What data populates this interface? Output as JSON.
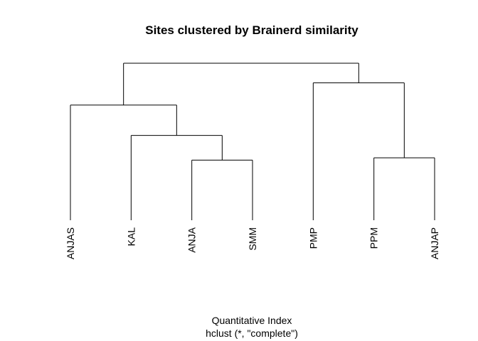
{
  "chart_data": {
    "type": "dendrogram",
    "title": "Sites clustered by Brainerd similarity",
    "xlabel": "Quantitative Index",
    "sub": "hclust (*, \"complete\")",
    "labels": [
      "ANJAS",
      "KAL",
      "ANJA",
      "SMM",
      "PMP",
      "PPM",
      "ANJAP"
    ],
    "merges": [
      {
        "a": "leaf:ANJA",
        "b": "leaf:SMM",
        "height": 0.658
      },
      {
        "a": "leaf:PPM",
        "b": "leaf:ANJAP",
        "height": 0.672
      },
      {
        "a": "leaf:KAL",
        "b": "node:0",
        "height": 0.805
      },
      {
        "a": "leaf:ANJAS",
        "b": "node:2",
        "height": 0.986
      },
      {
        "a": "leaf:PMP",
        "b": "node:1",
        "height": 1.118
      },
      {
        "a": "node:3",
        "b": "node:4",
        "height": 1.235
      }
    ],
    "axes": false,
    "grid": false
  }
}
